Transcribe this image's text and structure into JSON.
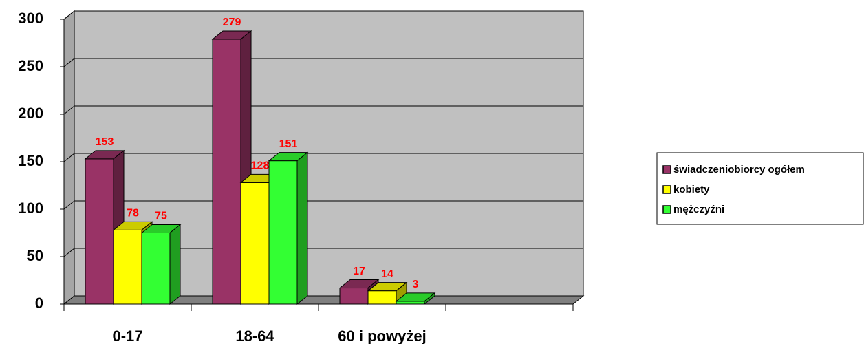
{
  "chart_data": {
    "type": "bar3d",
    "categories": [
      "0-17",
      "18-64",
      "60 i powyżej",
      null
    ],
    "series": [
      {
        "name": "świadczeniobiorcy ogółem",
        "color": "#993366",
        "values": [
          153,
          279,
          17,
          null
        ]
      },
      {
        "name": "kobiety",
        "color": "#ffff00",
        "values": [
          78,
          128,
          14,
          null
        ]
      },
      {
        "name": "mężczyźni",
        "color": "#33ff33",
        "values": [
          75,
          151,
          3,
          null
        ]
      }
    ],
    "ylim": [
      0,
      300
    ],
    "yticks": [
      0,
      50,
      100,
      150,
      200,
      250,
      300
    ],
    "grid": true,
    "legend": "right"
  }
}
